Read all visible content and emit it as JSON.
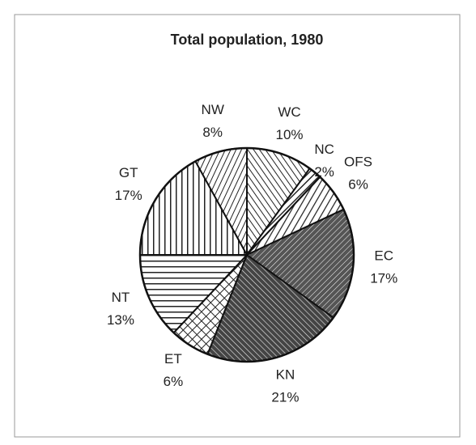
{
  "chart_data": {
    "type": "pie",
    "title": "Total population, 1980",
    "categories": [
      "WC",
      "NC",
      "OFS",
      "EC",
      "KN",
      "ET",
      "NT",
      "GT",
      "NW"
    ],
    "values": [
      10,
      2,
      6,
      17,
      21,
      6,
      13,
      17,
      8
    ],
    "value_labels": [
      "10%",
      "2%",
      "6%",
      "17%",
      "21%",
      "6%",
      "13%",
      "17%",
      "8%"
    ]
  }
}
